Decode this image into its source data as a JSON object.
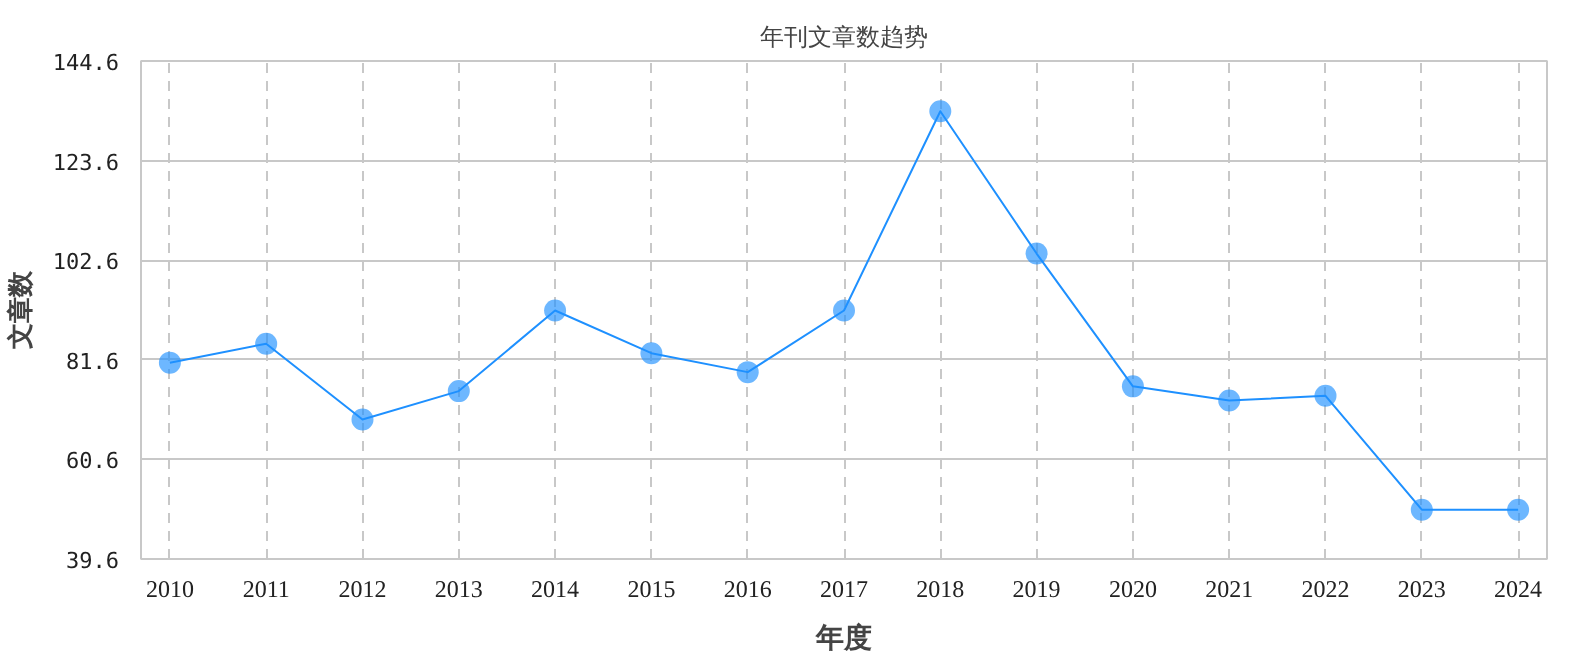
{
  "chart_data": {
    "type": "line",
    "title": "年刊文章数趋势",
    "xlabel": "年度",
    "ylabel": "文章数",
    "categories": [
      "2010",
      "2011",
      "2012",
      "2013",
      "2014",
      "2015",
      "2016",
      "2017",
      "2018",
      "2019",
      "2020",
      "2021",
      "2022",
      "2023",
      "2024"
    ],
    "series": [
      {
        "color": "#1e90ff",
        "values": [
          81,
          85,
          69,
          75,
          92,
          83,
          79,
          92,
          134,
          104,
          76,
          73,
          74,
          50,
          50
        ]
      }
    ],
    "marker": "circle",
    "line_style": "solid",
    "ylim": [
      39.6,
      144.6
    ],
    "yticks": [
      39.6,
      60.6,
      81.6,
      102.6,
      123.6,
      144.6
    ],
    "grid": true
  }
}
